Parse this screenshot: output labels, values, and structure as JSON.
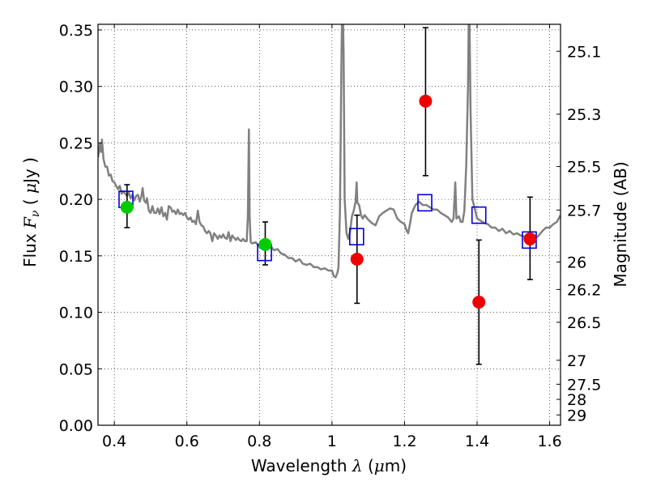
{
  "chart_data": {
    "type": "scatter",
    "xlabel": {
      "pre": "Wavelength  ",
      "sym": "λ",
      "post": " (",
      "mu": "μ",
      "post2": "m)"
    },
    "ylabel": {
      "pre": "Flux  ",
      "sym": "F",
      "sub": "ν",
      "post": "  ( ",
      "mu": "μ",
      "post2": "Jy )"
    },
    "y2label": "Magnitude (AB)",
    "xlim": [
      0.355,
      1.63
    ],
    "ylim": [
      0.0,
      0.355
    ],
    "grid": true,
    "xticks": [
      {
        "v": 0.4,
        "label": "0.4"
      },
      {
        "v": 0.6,
        "label": "0.6"
      },
      {
        "v": 0.8,
        "label": "0.8"
      },
      {
        "v": 1.0,
        "label": "1"
      },
      {
        "v": 1.2,
        "label": "1.2"
      },
      {
        "v": 1.4,
        "label": "1.4"
      },
      {
        "v": 1.6,
        "label": "1.6"
      }
    ],
    "yticks": [
      {
        "v": 0.0,
        "label": "0.00"
      },
      {
        "v": 0.05,
        "label": "0.05"
      },
      {
        "v": 0.1,
        "label": "0.10"
      },
      {
        "v": 0.15,
        "label": "0.15"
      },
      {
        "v": 0.2,
        "label": "0.20"
      },
      {
        "v": 0.25,
        "label": "0.25"
      },
      {
        "v": 0.3,
        "label": "0.30"
      },
      {
        "v": 0.35,
        "label": "0.35"
      }
    ],
    "y2ticks": [
      {
        "label": "25.1",
        "mag": 25.1
      },
      {
        "label": "25.3",
        "mag": 25.3
      },
      {
        "label": "25.5",
        "mag": 25.5
      },
      {
        "label": "25.7",
        "mag": 25.7
      },
      {
        "label": "26",
        "mag": 26.0
      },
      {
        "label": "26.2",
        "mag": 26.2
      },
      {
        "label": "26.5",
        "mag": 26.5
      },
      {
        "label": "27",
        "mag": 27.0
      },
      {
        "label": "27.5",
        "mag": 27.5
      },
      {
        "label": "28",
        "mag": 28.0
      },
      {
        "label": "29",
        "mag": 29.0
      }
    ],
    "series": [
      {
        "kind": "line",
        "color": "#808080",
        "points": [
          [
            0.355,
            0.237
          ],
          [
            0.36,
            0.249
          ],
          [
            0.363,
            0.242
          ],
          [
            0.366,
            0.253
          ],
          [
            0.37,
            0.236
          ],
          [
            0.375,
            0.229
          ],
          [
            0.38,
            0.229
          ],
          [
            0.385,
            0.221
          ],
          [
            0.39,
            0.222
          ],
          [
            0.395,
            0.216
          ],
          [
            0.4,
            0.215
          ],
          [
            0.405,
            0.212
          ],
          [
            0.41,
            0.209
          ],
          [
            0.415,
            0.212
          ],
          [
            0.42,
            0.205
          ],
          [
            0.425,
            0.207
          ],
          [
            0.43,
            0.205
          ],
          [
            0.435,
            0.203
          ],
          [
            0.44,
            0.206
          ],
          [
            0.445,
            0.201
          ],
          [
            0.45,
            0.204
          ],
          [
            0.455,
            0.199
          ],
          [
            0.46,
            0.203
          ],
          [
            0.465,
            0.204
          ],
          [
            0.47,
            0.198
          ],
          [
            0.475,
            0.203
          ],
          [
            0.478,
            0.21
          ],
          [
            0.482,
            0.199
          ],
          [
            0.487,
            0.197
          ],
          [
            0.49,
            0.201
          ],
          [
            0.495,
            0.19
          ],
          [
            0.5,
            0.188
          ],
          [
            0.505,
            0.194
          ],
          [
            0.51,
            0.188
          ],
          [
            0.515,
            0.188
          ],
          [
            0.52,
            0.192
          ],
          [
            0.525,
            0.187
          ],
          [
            0.53,
            0.193
          ],
          [
            0.535,
            0.185
          ],
          [
            0.54,
            0.188
          ],
          [
            0.545,
            0.182
          ],
          [
            0.55,
            0.194
          ],
          [
            0.555,
            0.193
          ],
          [
            0.56,
            0.189
          ],
          [
            0.565,
            0.19
          ],
          [
            0.57,
            0.187
          ],
          [
            0.575,
            0.191
          ],
          [
            0.58,
            0.187
          ],
          [
            0.585,
            0.188
          ],
          [
            0.59,
            0.186
          ],
          [
            0.595,
            0.188
          ],
          [
            0.6,
            0.184
          ],
          [
            0.605,
            0.182
          ],
          [
            0.61,
            0.184
          ],
          [
            0.615,
            0.18
          ],
          [
            0.62,
            0.181
          ],
          [
            0.625,
            0.178
          ],
          [
            0.63,
            0.19
          ],
          [
            0.635,
            0.18
          ],
          [
            0.64,
            0.177
          ],
          [
            0.645,
            0.176
          ],
          [
            0.65,
            0.172
          ],
          [
            0.655,
            0.17
          ],
          [
            0.66,
            0.172
          ],
          [
            0.665,
            0.17
          ],
          [
            0.67,
            0.163
          ],
          [
            0.675,
            0.17
          ],
          [
            0.68,
            0.168
          ],
          [
            0.685,
            0.165
          ],
          [
            0.69,
            0.168
          ],
          [
            0.695,
            0.166
          ],
          [
            0.7,
            0.169
          ],
          [
            0.705,
            0.166
          ],
          [
            0.71,
            0.165
          ],
          [
            0.715,
            0.171
          ],
          [
            0.72,
            0.163
          ],
          [
            0.725,
            0.168
          ],
          [
            0.73,
            0.166
          ],
          [
            0.735,
            0.164
          ],
          [
            0.74,
            0.166
          ],
          [
            0.745,
            0.164
          ],
          [
            0.75,
            0.163
          ],
          [
            0.755,
            0.165
          ],
          [
            0.76,
            0.163
          ],
          [
            0.765,
            0.163
          ],
          [
            0.768,
            0.185
          ],
          [
            0.771,
            0.262
          ],
          [
            0.773,
            0.185
          ],
          [
            0.776,
            0.162
          ],
          [
            0.78,
            0.161
          ],
          [
            0.79,
            0.162
          ],
          [
            0.8,
            0.158
          ],
          [
            0.81,
            0.161
          ],
          [
            0.82,
            0.158
          ],
          [
            0.83,
            0.159
          ],
          [
            0.84,
            0.155
          ],
          [
            0.85,
            0.156
          ],
          [
            0.86,
            0.152
          ],
          [
            0.87,
            0.151
          ],
          [
            0.88,
            0.148
          ],
          [
            0.89,
            0.148
          ],
          [
            0.9,
            0.145
          ],
          [
            0.91,
            0.147
          ],
          [
            0.92,
            0.143
          ],
          [
            0.93,
            0.142
          ],
          [
            0.94,
            0.143
          ],
          [
            0.95,
            0.14
          ],
          [
            0.96,
            0.14
          ],
          [
            0.97,
            0.138
          ],
          [
            0.98,
            0.139
          ],
          [
            0.99,
            0.137
          ],
          [
            1.0,
            0.137
          ],
          [
            1.005,
            0.132
          ],
          [
            1.01,
            0.131
          ],
          [
            1.015,
            0.135
          ],
          [
            1.018,
            0.14
          ],
          [
            1.022,
            0.19
          ],
          [
            1.026,
            0.32
          ],
          [
            1.029,
            0.39
          ],
          [
            1.032,
            0.33
          ],
          [
            1.035,
            0.2
          ],
          [
            1.04,
            0.17
          ],
          [
            1.045,
            0.165
          ],
          [
            1.05,
            0.172
          ],
          [
            1.055,
            0.185
          ],
          [
            1.06,
            0.19
          ],
          [
            1.065,
            0.198
          ],
          [
            1.068,
            0.215
          ],
          [
            1.07,
            0.197
          ],
          [
            1.075,
            0.195
          ],
          [
            1.08,
            0.186
          ],
          [
            1.085,
            0.183
          ],
          [
            1.09,
            0.186
          ],
          [
            1.1,
            0.182
          ],
          [
            1.11,
            0.179
          ],
          [
            1.12,
            0.177
          ],
          [
            1.13,
            0.185
          ],
          [
            1.14,
            0.188
          ],
          [
            1.15,
            0.19
          ],
          [
            1.16,
            0.192
          ],
          [
            1.17,
            0.191
          ],
          [
            1.18,
            0.183
          ],
          [
            1.19,
            0.18
          ],
          [
            1.2,
            0.178
          ],
          [
            1.205,
            0.173
          ],
          [
            1.21,
            0.17
          ],
          [
            1.215,
            0.178
          ],
          [
            1.22,
            0.188
          ],
          [
            1.23,
            0.195
          ],
          [
            1.24,
            0.198
          ],
          [
            1.25,
            0.195
          ],
          [
            1.26,
            0.195
          ],
          [
            1.27,
            0.193
          ],
          [
            1.28,
            0.191
          ],
          [
            1.29,
            0.191
          ],
          [
            1.3,
            0.188
          ],
          [
            1.31,
            0.186
          ],
          [
            1.32,
            0.184
          ],
          [
            1.33,
            0.18
          ],
          [
            1.335,
            0.183
          ],
          [
            1.34,
            0.215
          ],
          [
            1.343,
            0.183
          ],
          [
            1.35,
            0.185
          ],
          [
            1.355,
            0.18
          ],
          [
            1.36,
            0.18
          ],
          [
            1.365,
            0.19
          ],
          [
            1.37,
            0.23
          ],
          [
            1.375,
            0.3
          ],
          [
            1.378,
            0.39
          ],
          [
            1.382,
            0.28
          ],
          [
            1.387,
            0.2
          ],
          [
            1.395,
            0.19
          ],
          [
            1.4,
            0.183
          ],
          [
            1.41,
            0.181
          ],
          [
            1.42,
            0.179
          ],
          [
            1.43,
            0.178
          ],
          [
            1.44,
            0.175
          ],
          [
            1.45,
            0.175
          ],
          [
            1.46,
            0.172
          ],
          [
            1.47,
            0.174
          ],
          [
            1.48,
            0.17
          ],
          [
            1.49,
            0.172
          ],
          [
            1.5,
            0.169
          ],
          [
            1.51,
            0.17
          ],
          [
            1.52,
            0.168
          ],
          [
            1.53,
            0.167
          ],
          [
            1.54,
            0.165
          ],
          [
            1.55,
            0.163
          ],
          [
            1.56,
            0.165
          ],
          [
            1.57,
            0.168
          ],
          [
            1.58,
            0.172
          ],
          [
            1.59,
            0.175
          ],
          [
            1.6,
            0.175
          ],
          [
            1.61,
            0.178
          ],
          [
            1.62,
            0.18
          ],
          [
            1.63,
            0.186
          ]
        ]
      },
      {
        "kind": "square",
        "color": "#0000dd",
        "points": [
          [
            0.432,
            0.2
          ],
          [
            0.814,
            0.153
          ],
          [
            1.068,
            0.167
          ],
          [
            1.256,
            0.197
          ],
          [
            1.405,
            0.186
          ],
          [
            1.544,
            0.164
          ]
        ]
      },
      {
        "kind": "circle",
        "color": "#00cc00",
        "points": [
          [
            0.435,
            0.193,
            0.175,
            0.213
          ],
          [
            0.816,
            0.16,
            0.142,
            0.18
          ]
        ]
      },
      {
        "kind": "circle",
        "color": "#ee0000",
        "points": [
          [
            1.069,
            0.147,
            0.108,
            0.186
          ],
          [
            1.258,
            0.287,
            0.221,
            0.352
          ],
          [
            1.405,
            0.109,
            0.054,
            0.164
          ],
          [
            1.546,
            0.165,
            0.129,
            0.202
          ]
        ]
      }
    ]
  }
}
